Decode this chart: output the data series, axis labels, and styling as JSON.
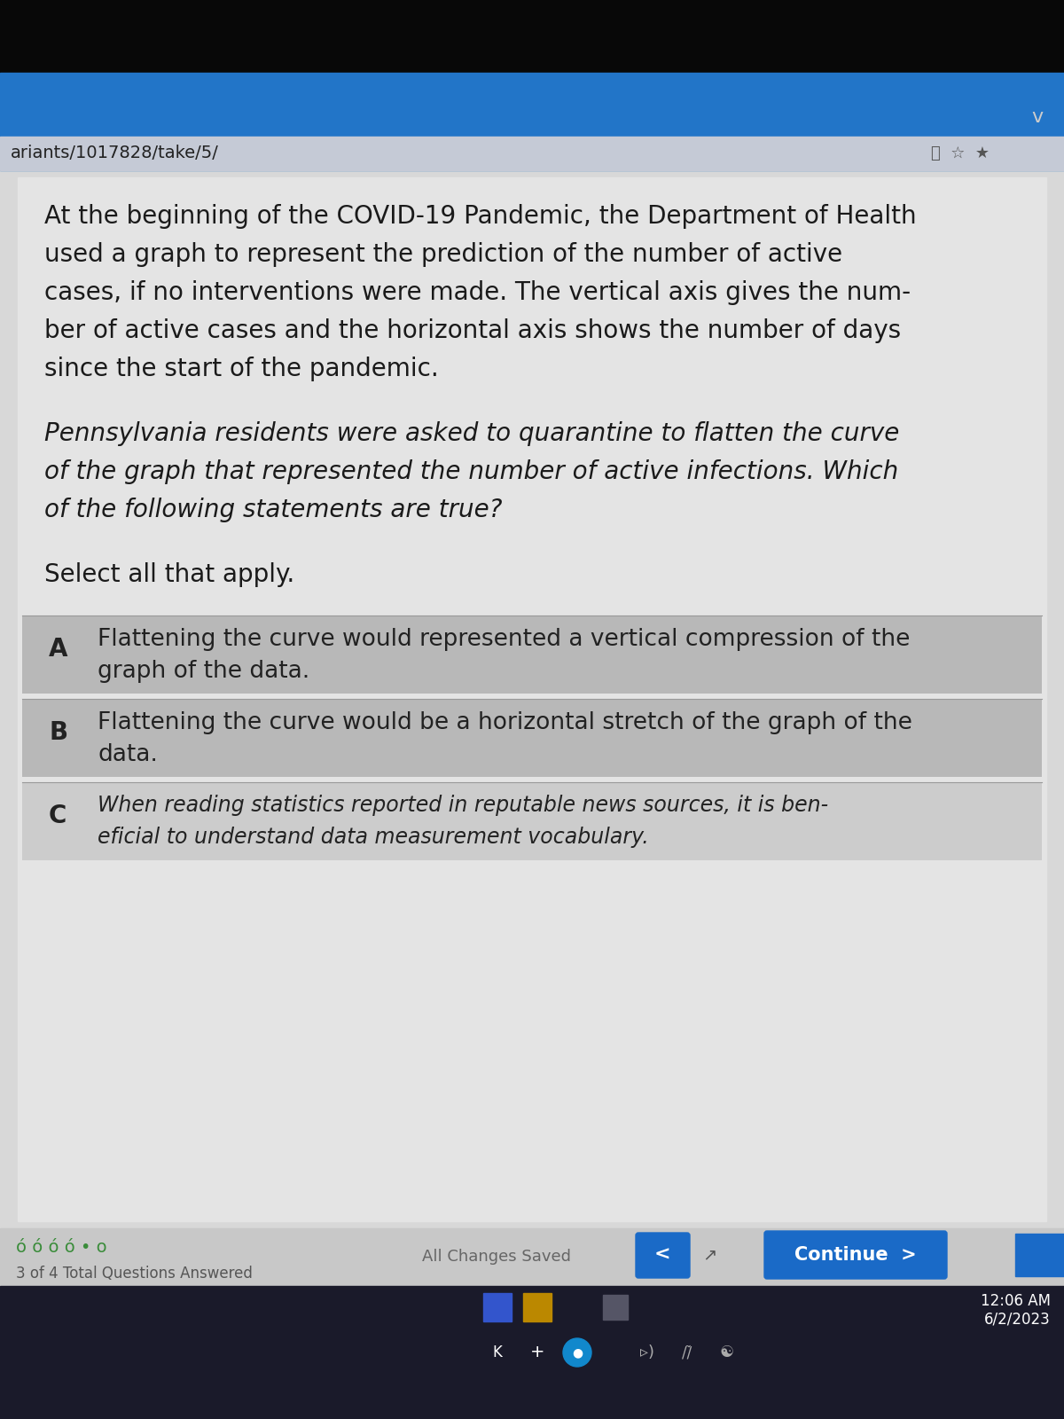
{
  "url_text": "ariants/1017828/take/5/",
  "para1_lines": [
    "At the beginning of the COVID-19 Pandemic, the Department of Health",
    "used a graph to represent the prediction of the number of active",
    "cases, if no interventions were made. The vertical axis gives the num-",
    "ber of active cases and the horizontal axis shows the number of days",
    "since the start of the pandemic."
  ],
  "para2_lines": [
    "Pennsylvania residents were asked to quarantine to flatten the curve",
    "of the graph that represented the number of active infections. Which",
    "of the following statements are true?"
  ],
  "select_text": "Select all that apply.",
  "option_A_label": "A",
  "option_A_line1": "Flattening the curve would represented a vertical compression of the",
  "option_A_line2": "graph of the data.",
  "option_A_bg": "#b8b8b8",
  "option_B_label": "B",
  "option_B_line1": "Flattening the curve would be a horizontal stretch of the graph of the",
  "option_B_line2": "data.",
  "option_B_bg": "#b8b8b8",
  "option_C_label": "C",
  "option_C_line1": "When reading statistics reported in reputable news sources, it is ben-",
  "option_C_line2": "eficial to understand data measurement vocabulary.",
  "option_C_bg": "#cccccc",
  "footer_bg": "#cccccc",
  "footer_text_left1": "ó ó ó ó • o",
  "footer_text_left2": "3 of 4 Total Questions Answered",
  "footer_center": "All Changes Saved",
  "continue_btn_color": "#1a6ac7",
  "continue_btn_text": "Continue  >",
  "taskbar_bg": "#1a1a2a",
  "time_line1": "12:06 AM",
  "time_line2": "6/2/2023",
  "top_black": "#080808",
  "blue_bar": "#2275c8",
  "content_bg": "#d8d8d8",
  "panel_bg": "#e4e4e4",
  "text_color": "#1a1a1a",
  "url_color": "#222222",
  "chevron": "v",
  "font_size_body": 20,
  "font_size_small": 14
}
